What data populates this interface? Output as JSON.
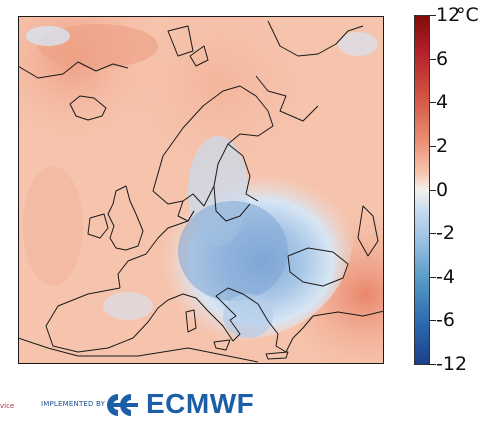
{
  "colorbar": {
    "unit": "°C",
    "ticks": [
      "12",
      "6",
      "4",
      "2",
      "0",
      "-2",
      "-4",
      "-6",
      "-12"
    ],
    "colors": {
      "max": "#7f0c07",
      "warm": "#e88b6e",
      "neutral": "#f4f1ee",
      "cool": "#92bcde",
      "min": "#1c3f8c"
    }
  },
  "map": {
    "region": "Europe",
    "anomaly_colors": {
      "warm_background": "#f7c3aa",
      "strong_warm": "#ea8f72",
      "cool_center": "#7fa9d7",
      "light_cool": "#cfe0f2"
    }
  },
  "footer": {
    "left_text": "vice",
    "implemented_by": "IMPLEMENTED BY",
    "logo_text": "ECMWF",
    "logo_icon": "ecmwf-logo-icon"
  }
}
